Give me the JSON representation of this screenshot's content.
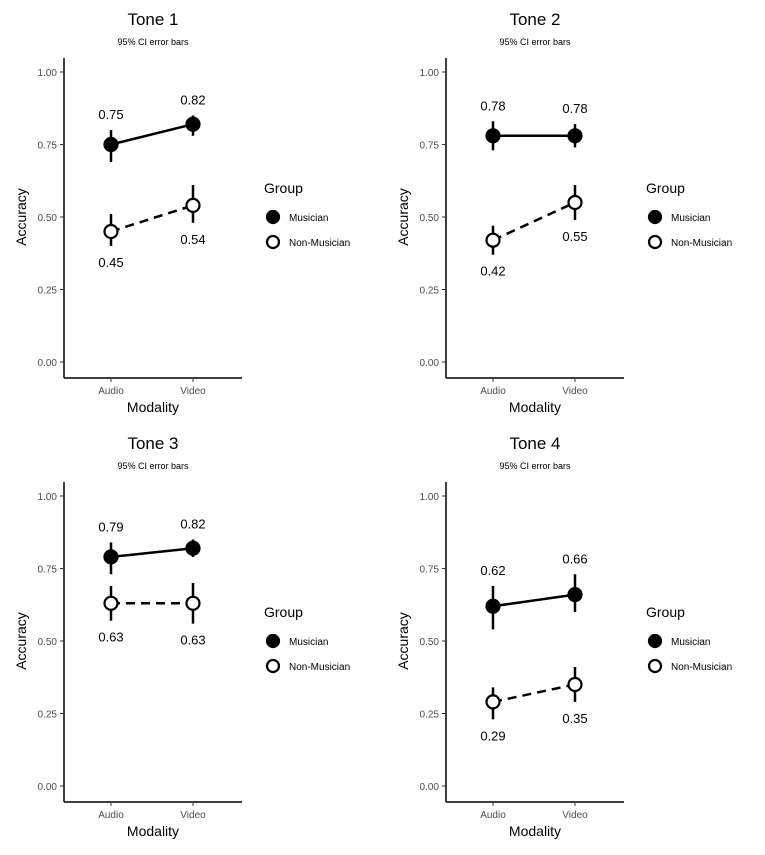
{
  "chart_data": [
    {
      "type": "line",
      "title": "Tone 1",
      "subtitle": "95% CI error bars",
      "xlabel": "Modality",
      "ylabel": "Accuracy",
      "categories": [
        "Audio",
        "Video"
      ],
      "ylim": [
        0,
        1
      ],
      "yticks": [
        "0.00",
        "0.25",
        "0.50",
        "0.75",
        "1.00"
      ],
      "series": [
        {
          "name": "Musician",
          "values": [
            0.75,
            0.82
          ],
          "ci_low": [
            0.69,
            0.78
          ],
          "ci_high": [
            0.8,
            0.85
          ],
          "labels": [
            "0.75",
            "0.82"
          ],
          "label_pos": "above",
          "marker": "filled",
          "line": "solid"
        },
        {
          "name": "Non-Musician",
          "values": [
            0.45,
            0.54
          ],
          "ci_low": [
            0.4,
            0.48
          ],
          "ci_high": [
            0.51,
            0.61
          ],
          "labels": [
            "0.45",
            "0.54"
          ],
          "label_pos": "below",
          "marker": "open",
          "line": "dashed"
        }
      ],
      "legend": {
        "title": "Group",
        "position": "right"
      }
    },
    {
      "type": "line",
      "title": "Tone 2",
      "subtitle": "95% CI error bars",
      "xlabel": "Modality",
      "ylabel": "Accuracy",
      "categories": [
        "Audio",
        "Video"
      ],
      "ylim": [
        0,
        1
      ],
      "yticks": [
        "0.00",
        "0.25",
        "0.50",
        "0.75",
        "1.00"
      ],
      "series": [
        {
          "name": "Musician",
          "values": [
            0.78,
            0.78
          ],
          "ci_low": [
            0.73,
            0.74
          ],
          "ci_high": [
            0.83,
            0.82
          ],
          "labels": [
            "0.78",
            "0.78"
          ],
          "label_pos": "above",
          "marker": "filled",
          "line": "solid"
        },
        {
          "name": "Non-Musician",
          "values": [
            0.42,
            0.55
          ],
          "ci_low": [
            0.37,
            0.49
          ],
          "ci_high": [
            0.47,
            0.61
          ],
          "labels": [
            "0.42",
            "0.55"
          ],
          "label_pos": "below",
          "marker": "open",
          "line": "dashed"
        }
      ],
      "legend": {
        "title": "Group",
        "position": "right"
      }
    },
    {
      "type": "line",
      "title": "Tone 3",
      "subtitle": "95% CI error bars",
      "xlabel": "Modality",
      "ylabel": "Accuracy",
      "categories": [
        "Audio",
        "Video"
      ],
      "ylim": [
        0,
        1
      ],
      "yticks": [
        "0.00",
        "0.25",
        "0.50",
        "0.75",
        "1.00"
      ],
      "series": [
        {
          "name": "Musician",
          "values": [
            0.79,
            0.82
          ],
          "ci_low": [
            0.73,
            0.79
          ],
          "ci_high": [
            0.84,
            0.85
          ],
          "labels": [
            "0.79",
            "0.82"
          ],
          "label_pos": "above",
          "marker": "filled",
          "line": "solid"
        },
        {
          "name": "Non-Musician",
          "values": [
            0.63,
            0.63
          ],
          "ci_low": [
            0.57,
            0.56
          ],
          "ci_high": [
            0.69,
            0.7
          ],
          "labels": [
            "0.63",
            "0.63"
          ],
          "label_pos": "below",
          "marker": "open",
          "line": "dashed"
        }
      ],
      "legend": {
        "title": "Group",
        "position": "right"
      }
    },
    {
      "type": "line",
      "title": "Tone 4",
      "subtitle": "95% CI error bars",
      "xlabel": "Modality",
      "ylabel": "Accuracy",
      "categories": [
        "Audio",
        "Video"
      ],
      "ylim": [
        0,
        1
      ],
      "yticks": [
        "0.00",
        "0.25",
        "0.50",
        "0.75",
        "1.00"
      ],
      "series": [
        {
          "name": "Musician",
          "values": [
            0.62,
            0.66
          ],
          "ci_low": [
            0.54,
            0.6
          ],
          "ci_high": [
            0.69,
            0.73
          ],
          "labels": [
            "0.62",
            "0.66"
          ],
          "label_pos": "above",
          "marker": "filled",
          "line": "solid"
        },
        {
          "name": "Non-Musician",
          "values": [
            0.29,
            0.35
          ],
          "ci_low": [
            0.23,
            0.29
          ],
          "ci_high": [
            0.34,
            0.41
          ],
          "labels": [
            "0.29",
            "0.35"
          ],
          "label_pos": "below",
          "marker": "open",
          "line": "dashed"
        }
      ],
      "legend": {
        "title": "Group",
        "position": "right"
      }
    }
  ]
}
